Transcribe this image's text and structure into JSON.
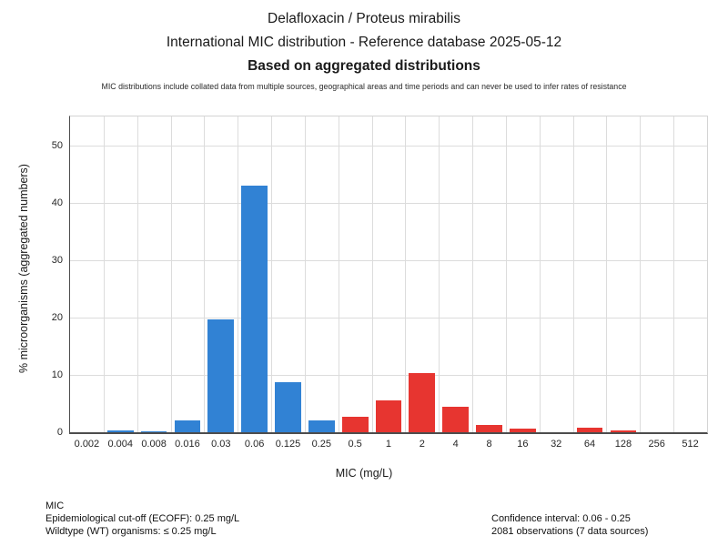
{
  "header": {
    "disclaimer": "MIC distributions include collated data from multiple sources, geographical areas and time periods and can never be used to infer rates of resistance"
  },
  "chart_data": {
    "type": "bar",
    "title": "Delafloxacin / Proteus mirabilis",
    "subtitle": "International MIC distribution - Reference database 2025-05-12",
    "subtitle2": "Based on aggregated distributions",
    "xlabel": "MIC (mg/L)",
    "ylabel": "% microorganisms (aggregated numbers)",
    "categories": [
      "0.002",
      "0.004",
      "0.008",
      "0.016",
      "0.03",
      "0.06",
      "0.125",
      "0.25",
      "0.5",
      "1",
      "2",
      "4",
      "8",
      "16",
      "32",
      "64",
      "128",
      "256",
      "512"
    ],
    "values": [
      0,
      0.25,
      0.2,
      2.0,
      19.6,
      42.9,
      8.7,
      2.0,
      2.7,
      5.6,
      10.3,
      4.5,
      1.3,
      0.6,
      0,
      0.8,
      0.3,
      0,
      0
    ],
    "bar_classes": [
      "wt",
      "wt",
      "wt",
      "wt",
      "wt",
      "wt",
      "wt",
      "wt",
      "nwt",
      "nwt",
      "nwt",
      "nwt",
      "nwt",
      "nwt",
      "nwt",
      "nwt",
      "nwt",
      "nwt",
      "nwt"
    ],
    "colors": {
      "wt": "#3182d4",
      "nwt": "#e73530"
    },
    "yticks": [
      0,
      10,
      20,
      30,
      40,
      50
    ],
    "ylim": [
      0,
      55
    ],
    "grid": true,
    "legend": "none"
  },
  "footer": {
    "left": [
      "MIC",
      "Epidemiological cut-off (ECOFF): 0.25 mg/L",
      "Wildtype (WT) organisms: ≤ 0.25 mg/L"
    ],
    "right": [
      "Confidence interval: 0.06 - 0.25",
      "2081 observations (7 data sources)"
    ]
  }
}
